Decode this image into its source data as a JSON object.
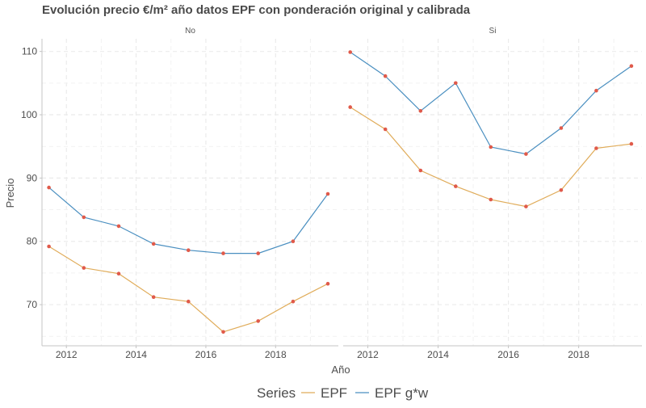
{
  "chart_data": {
    "type": "line",
    "title": "Evolución precio €/m² año datos EPF con ponderación original y calibrada",
    "xlabel": "Año",
    "ylabel": "Precio",
    "xlim": [
      2011.3,
      2019.8
    ],
    "ylim": [
      63.5,
      112
    ],
    "x_ticks": [
      2012,
      2014,
      2016,
      2018
    ],
    "y_ticks": [
      70,
      80,
      90,
      100,
      110
    ],
    "grid": true,
    "legend": {
      "title": "Series",
      "position": "bottom",
      "entries": [
        "EPF",
        "EPF g*w"
      ]
    },
    "point_color": "#e05a4a",
    "series_colors": {
      "EPF": "#e0ac5a",
      "EPF g*w": "#4a8fc0"
    },
    "x": [
      2011.5,
      2012.5,
      2013.5,
      2014.5,
      2015.5,
      2016.5,
      2017.5,
      2018.5,
      2019.5
    ],
    "panels": [
      {
        "label": "No",
        "series": [
          {
            "name": "EPF",
            "values": [
              79.2,
              75.8,
              74.9,
              71.2,
              70.5,
              65.7,
              67.4,
              70.5,
              73.3
            ]
          },
          {
            "name": "EPF g*w",
            "values": [
              88.5,
              83.8,
              82.4,
              79.6,
              78.6,
              78.1,
              78.1,
              80.0,
              87.5
            ]
          }
        ]
      },
      {
        "label": "Si",
        "series": [
          {
            "name": "EPF",
            "values": [
              101.2,
              97.7,
              91.2,
              88.7,
              86.6,
              85.5,
              88.1,
              94.7,
              95.4
            ]
          },
          {
            "name": "EPF g*w",
            "values": [
              109.9,
              106.1,
              100.6,
              105.0,
              94.9,
              93.8,
              97.9,
              103.8,
              107.7
            ]
          }
        ]
      }
    ]
  }
}
